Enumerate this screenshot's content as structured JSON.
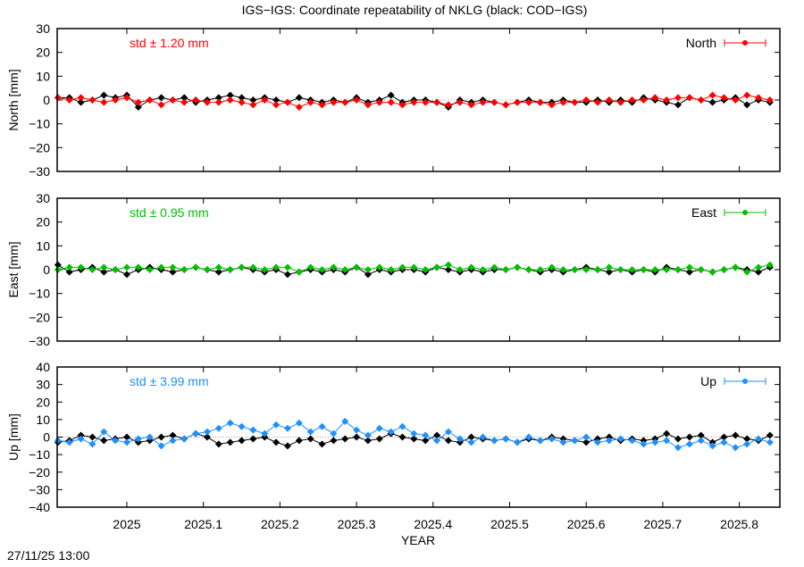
{
  "title": "IGS−IGS: Coordinate repeatability of NKLG (black: COD−IGS)",
  "timestamp": "27/11/25 13:00",
  "chart_data": [
    {
      "type": "line",
      "ylabel": "North [mm]",
      "xlabel": "",
      "ylim": [
        -30,
        30
      ],
      "yticks": [
        "30",
        "20",
        "10",
        "0",
        "−10",
        "−20",
        "−30"
      ],
      "ytick_values": [
        30,
        20,
        10,
        0,
        -10,
        -20,
        -30
      ],
      "xlim": [
        2024.909,
        2025.853
      ],
      "std_label": "std ± 1.20 mm",
      "legend": "North",
      "legend_placement": "top-right",
      "color": "#ff0000",
      "series": [
        {
          "color": "#000000",
          "values": [
            1,
            1,
            -1,
            0,
            2,
            1,
            2,
            -3,
            0,
            1,
            0,
            1,
            -1,
            0,
            1,
            2,
            1,
            0,
            1,
            0,
            -1,
            1,
            0,
            -1,
            0,
            -1,
            1,
            -1,
            0,
            2,
            -1,
            0,
            0,
            -1,
            -3,
            0,
            -1,
            0,
            -1,
            -2,
            -1,
            0,
            -1,
            -1,
            0,
            -1,
            -1,
            0,
            -1,
            0,
            -1,
            1,
            0,
            -1,
            -2,
            1,
            0,
            -1,
            0,
            1,
            -2,
            0,
            -1
          ]
        },
        {
          "name": "North",
          "color": "#ff0000",
          "values": [
            1,
            0,
            1,
            0,
            -1,
            0,
            1,
            -1,
            0,
            -2,
            0,
            -1,
            0,
            -1,
            -1,
            0,
            -1,
            -2,
            0,
            -2,
            -1,
            -3,
            -1,
            -2,
            -1,
            -1,
            0,
            -2,
            -1,
            -1,
            -2,
            -1,
            -1,
            -1,
            -2,
            -1,
            -2,
            -1,
            -1,
            -2,
            -1,
            -1,
            -1,
            -2,
            -1,
            -1,
            0,
            -1,
            0,
            -1,
            0,
            0,
            1,
            0,
            1,
            1,
            0,
            2,
            1,
            0,
            2,
            1,
            0
          ]
        }
      ]
    },
    {
      "type": "line",
      "ylabel": "East [mm]",
      "xlabel": "",
      "ylim": [
        -30,
        30
      ],
      "yticks": [
        "30",
        "20",
        "10",
        "0",
        "−10",
        "−20",
        "−30"
      ],
      "ytick_values": [
        30,
        20,
        10,
        0,
        -10,
        -20,
        -30
      ],
      "xlim": [
        2024.909,
        2025.853
      ],
      "std_label": "std ± 0.95 mm",
      "legend": "East",
      "legend_placement": "top-right",
      "color": "#00c000",
      "series": [
        {
          "color": "#000000",
          "values": [
            2,
            -1,
            0,
            1,
            -1,
            0,
            -2,
            0,
            1,
            0,
            -1,
            0,
            1,
            0,
            -1,
            0,
            1,
            0,
            -1,
            0,
            -2,
            -1,
            0,
            -1,
            0,
            -1,
            1,
            -2,
            0,
            -1,
            0,
            0,
            -1,
            1,
            0,
            -1,
            0,
            -1,
            0,
            0,
            1,
            0,
            -1,
            0,
            -1,
            0,
            1,
            0,
            -1,
            0,
            -1,
            0,
            -1,
            1,
            0,
            -1,
            0,
            -1,
            0,
            1,
            0,
            -1,
            1
          ]
        },
        {
          "name": "East",
          "color": "#00c000",
          "values": [
            0,
            1,
            1,
            0,
            1,
            0,
            1,
            1,
            0,
            1,
            1,
            0,
            1,
            0,
            1,
            0,
            1,
            1,
            0,
            1,
            1,
            -1,
            1,
            0,
            1,
            0,
            1,
            0,
            1,
            0,
            1,
            1,
            0,
            1,
            2,
            0,
            1,
            0,
            1,
            0,
            1,
            0,
            0,
            1,
            0,
            0,
            0,
            0,
            1,
            0,
            0,
            0,
            0,
            0,
            0,
            1,
            0,
            -1,
            0,
            1,
            -1,
            1,
            2
          ]
        }
      ]
    },
    {
      "type": "line",
      "ylabel": "Up [mm]",
      "xlabel": "YEAR",
      "ylim": [
        -40,
        40
      ],
      "yticks": [
        "40",
        "30",
        "20",
        "10",
        "0",
        "−10",
        "−20",
        "−30",
        "−40"
      ],
      "ytick_values": [
        40,
        30,
        20,
        10,
        0,
        -10,
        -20,
        -30,
        -40
      ],
      "xlim": [
        2024.909,
        2025.853
      ],
      "xticks": [
        "2025",
        "2025.1",
        "2025.2",
        "2025.3",
        "2025.4",
        "2025.5",
        "2025.6",
        "2025.7",
        "2025.8"
      ],
      "xtick_values": [
        2025,
        2025.1,
        2025.2,
        2025.3,
        2025.4,
        2025.5,
        2025.6,
        2025.7,
        2025.8
      ],
      "std_label": "std ± 3.99 mm",
      "legend": "Up",
      "legend_placement": "top-right",
      "color": "#1e90ff",
      "series": [
        {
          "color": "#000000",
          "values": [
            -3,
            -2,
            1,
            0,
            -2,
            -1,
            0,
            -3,
            -2,
            0,
            1,
            -1,
            2,
            0,
            -4,
            -3,
            -2,
            -1,
            0,
            -3,
            -5,
            -2,
            -1,
            -4,
            -2,
            -1,
            0,
            -2,
            -1,
            2,
            0,
            -1,
            -2,
            1,
            -2,
            -3,
            0,
            -1,
            -2,
            -1,
            -3,
            -1,
            -2,
            0,
            -1,
            -2,
            -3,
            -1,
            0,
            -2,
            -1,
            -2,
            -1,
            2,
            -1,
            0,
            1,
            -3,
            0,
            1,
            -1,
            -2,
            1
          ]
        },
        {
          "name": "Up",
          "color": "#1e90ff",
          "values": [
            -2,
            -3,
            -1,
            -4,
            3,
            -2,
            -3,
            -1,
            0,
            -5,
            -2,
            -1,
            2,
            3,
            5,
            8,
            6,
            4,
            2,
            7,
            5,
            8,
            3,
            6,
            2,
            9,
            4,
            1,
            5,
            3,
            6,
            2,
            1,
            -2,
            3,
            -1,
            -3,
            0,
            -2,
            -1,
            -3,
            0,
            -2,
            -1,
            -3,
            -2,
            0,
            -3,
            -2,
            -1,
            -2,
            -4,
            -3,
            -2,
            -6,
            -4,
            -2,
            -5,
            -3,
            -6,
            -4,
            -1,
            -3
          ]
        }
      ]
    }
  ],
  "x": [
    2024.91,
    2024.925,
    2024.94,
    2024.955,
    2024.97,
    2024.985,
    2025.0,
    2025.015,
    2025.03,
    2025.045,
    2025.06,
    2025.075,
    2025.09,
    2025.105,
    2025.12,
    2025.135,
    2025.15,
    2025.165,
    2025.18,
    2025.195,
    2025.21,
    2025.225,
    2025.24,
    2025.255,
    2025.27,
    2025.285,
    2025.3,
    2025.315,
    2025.33,
    2025.345,
    2025.36,
    2025.375,
    2025.39,
    2025.405,
    2025.42,
    2025.435,
    2025.45,
    2025.465,
    2025.48,
    2025.495,
    2025.51,
    2025.525,
    2025.54,
    2025.555,
    2025.57,
    2025.585,
    2025.6,
    2025.615,
    2025.63,
    2025.645,
    2025.66,
    2025.675,
    2025.69,
    2025.705,
    2025.72,
    2025.735,
    2025.75,
    2025.765,
    2025.78,
    2025.795,
    2025.81,
    2025.825,
    2025.84
  ]
}
